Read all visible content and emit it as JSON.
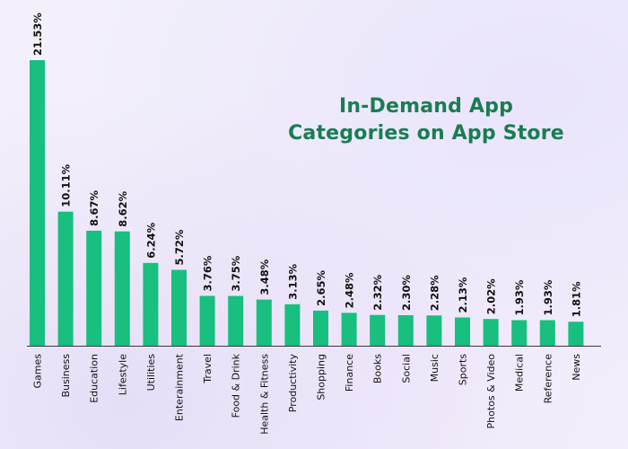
{
  "chart_data": {
    "type": "bar",
    "title_line1": "In-Demand App",
    "title_line2": "Categories on App Store",
    "xlabel": "",
    "ylabel": "",
    "bar_color": "#18bf7e",
    "title_color": "#1a7d52",
    "grid": false,
    "categories": [
      "Games",
      "Business",
      "Education",
      "Lifestyle",
      "Utilities",
      "Enterainment",
      "Travel",
      "Food & Drink",
      "Health & Fitness",
      "Productivity",
      "Shopping",
      "Finance",
      "Books",
      "Social",
      "Music",
      "Sports",
      "Photos & Video",
      "Medical",
      "Reference",
      "News"
    ],
    "values": [
      21.53,
      10.11,
      8.67,
      8.62,
      6.24,
      5.72,
      3.76,
      3.75,
      3.48,
      3.13,
      2.65,
      2.48,
      2.32,
      2.3,
      2.28,
      2.13,
      2.02,
      1.93,
      1.93,
      1.81
    ],
    "value_labels": [
      "21.53%",
      "10.11%",
      "8.67%",
      "8.62%",
      "6.24%",
      "5.72%",
      "3.76%",
      "3.75%",
      "3.48%",
      "3.13%",
      "2.65%",
      "2.48%",
      "2.32%",
      "2.30%",
      "2.28%",
      "2.13%",
      "2.02%",
      "1.93%",
      "1.93%",
      "1.81%"
    ]
  }
}
